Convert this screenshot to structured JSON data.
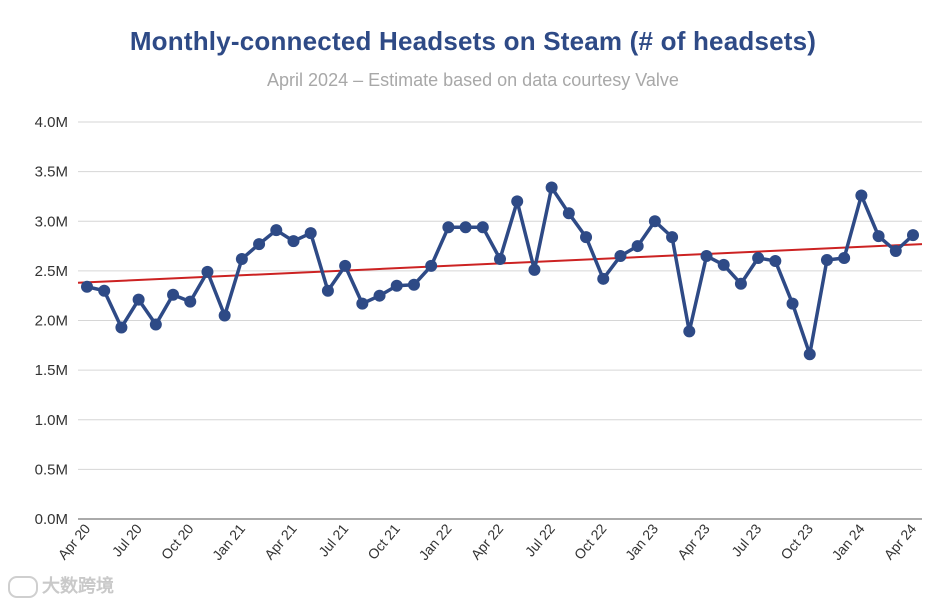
{
  "chart_data": {
    "type": "line",
    "title": "Monthly-connected Headsets on Steam (# of headsets)",
    "subtitle": "April 2024 – Estimate based on data courtesy Valve",
    "xlabel": "",
    "ylabel": "",
    "ylim": [
      0,
      4.0
    ],
    "y_ticks": [
      0,
      0.5,
      1.0,
      1.5,
      2.0,
      2.5,
      3.0,
      3.5,
      4.0
    ],
    "y_tick_labels": [
      "0.0M",
      "0.5M",
      "1.0M",
      "1.5M",
      "2.0M",
      "2.5M",
      "3.0M",
      "3.5M",
      "4.0M"
    ],
    "x_tick_labels": [
      "Apr 20",
      "Jul 20",
      "Oct 20",
      "Jan 21",
      "Apr 21",
      "Jul 21",
      "Oct 21",
      "Jan 22",
      "Apr 22",
      "Jul 22",
      "Oct 22",
      "Jan 23",
      "Apr 23",
      "Jul 23",
      "Oct 23",
      "Jan 24",
      "Apr 24"
    ],
    "grid": true,
    "series": [
      {
        "name": "Monthly-connected headsets (M)",
        "color": "#2e4a86",
        "values": [
          2.34,
          2.3,
          1.93,
          2.21,
          1.96,
          2.26,
          2.19,
          2.49,
          2.05,
          2.62,
          2.77,
          2.91,
          2.8,
          2.88,
          2.3,
          2.55,
          2.17,
          2.25,
          2.35,
          2.36,
          2.55,
          2.94,
          2.94,
          2.94,
          2.62,
          3.2,
          2.51,
          3.34,
          3.08,
          2.84,
          2.42,
          2.65,
          2.75,
          3.0,
          2.84,
          1.89,
          2.65,
          2.56,
          2.37,
          2.63,
          2.6,
          2.17,
          1.66,
          2.61,
          2.63,
          3.26,
          2.85,
          2.7,
          2.86
        ]
      },
      {
        "name": "Trend",
        "color": "#cc2222",
        "type": "linear-trend",
        "start": 2.38,
        "end": 2.77
      }
    ]
  },
  "watermark": {
    "text": "大数跨境"
  }
}
